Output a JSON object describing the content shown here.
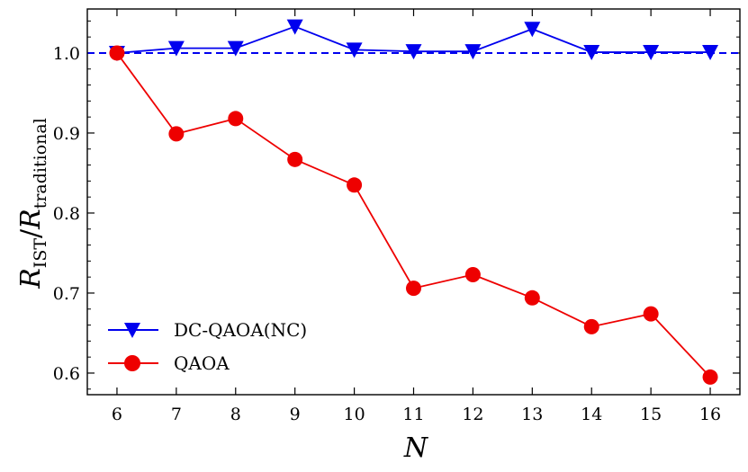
{
  "chart_data": {
    "type": "line",
    "title": "",
    "xlabel": "N",
    "ylabel": {
      "main": "R",
      "numerator_sub": "IST",
      "separator": "/",
      "denominator": "R",
      "denominator_sub": "traditional"
    },
    "xlim": [
      5.5,
      16.5
    ],
    "ylim": [
      0.573,
      1.055
    ],
    "x": [
      6,
      7,
      8,
      9,
      10,
      11,
      12,
      13,
      14,
      15,
      16
    ],
    "x_tick_labels": [
      "6",
      "7",
      "8",
      "9",
      "10",
      "11",
      "12",
      "13",
      "14",
      "15",
      "16"
    ],
    "y_ticks": [
      0.6,
      0.7,
      0.8,
      0.9,
      1.0
    ],
    "y_tick_labels": [
      "0.6",
      "0.7",
      "0.8",
      "0.9",
      "1.0"
    ],
    "reference_line": {
      "y": 1.0,
      "style": "dashed",
      "color": "#0000ee"
    },
    "series": [
      {
        "name": "DC-QAOA(NC)",
        "marker": "triangle-down",
        "color": "#0000ee",
        "values": [
          1.0,
          1.006,
          1.006,
          1.033,
          1.004,
          1.002,
          1.002,
          1.03,
          1.001,
          1.001,
          1.001
        ]
      },
      {
        "name": "QAOA",
        "marker": "circle",
        "color": "#ee0000",
        "values": [
          1.0,
          0.899,
          0.918,
          0.867,
          0.835,
          0.706,
          0.723,
          0.694,
          0.658,
          0.674,
          0.595
        ]
      }
    ],
    "legend_position": "bottom-left",
    "grid": false
  }
}
